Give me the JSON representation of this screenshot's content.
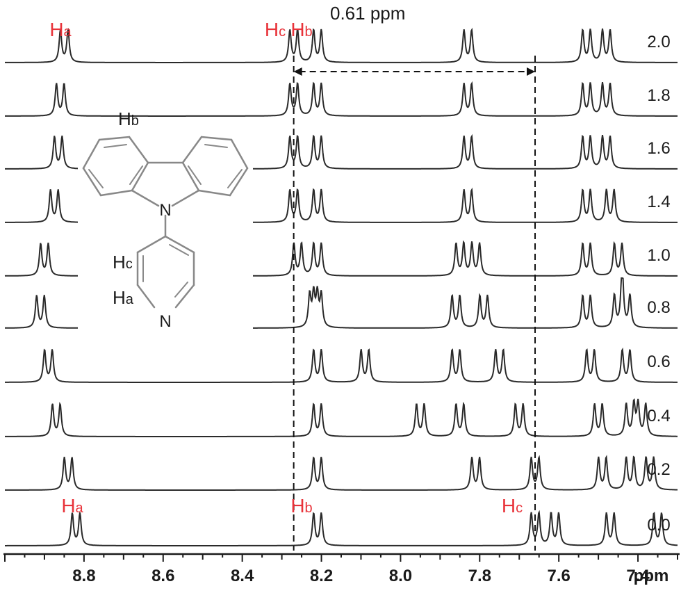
{
  "chart_data": {
    "type": "line",
    "title": "",
    "xlabel": "ppm",
    "ylabel": "",
    "xlim": [
      9.0,
      7.3
    ],
    "x_ticks": [
      "8.8",
      "8.6",
      "8.4",
      "8.2",
      "8.0",
      "7.8",
      "7.6",
      "7.4"
    ],
    "shift_annotation": "0.61 ppm",
    "dashed_guides_ppm": [
      8.27,
      7.66
    ],
    "series": [
      {
        "name": "2.0",
        "peaks": [
          8.85,
          8.27,
          8.21,
          7.83,
          7.53,
          7.48
        ]
      },
      {
        "name": "1.8",
        "peaks": [
          8.86,
          8.27,
          8.21,
          7.83,
          7.53,
          7.48
        ]
      },
      {
        "name": "1.6",
        "peaks": [
          8.865,
          8.27,
          8.21,
          7.83,
          7.53,
          7.48
        ]
      },
      {
        "name": "1.4",
        "peaks": [
          8.875,
          8.27,
          8.21,
          7.83,
          7.53,
          7.47
        ]
      },
      {
        "name": "1.0",
        "peaks": [
          8.9,
          8.26,
          8.21,
          7.85,
          7.81,
          7.53,
          7.45
        ]
      },
      {
        "name": "0.8",
        "peaks": [
          8.91,
          8.22,
          8.21,
          7.86,
          7.79,
          7.53,
          7.45,
          7.43
        ]
      },
      {
        "name": "0.6",
        "peaks": [
          8.89,
          8.21,
          8.09,
          7.86,
          7.75,
          7.52,
          7.43
        ]
      },
      {
        "name": "0.4",
        "peaks": [
          8.87,
          8.21,
          7.95,
          7.85,
          7.7,
          7.5,
          7.42,
          7.39
        ]
      },
      {
        "name": "0.2",
        "peaks": [
          8.84,
          8.21,
          7.81,
          7.66,
          7.49,
          7.42,
          7.37
        ]
      },
      {
        "name": "0.0",
        "peaks": [
          8.82,
          8.21,
          7.66,
          7.61,
          7.47,
          7.35
        ]
      }
    ],
    "peak_labels_top": [
      {
        "text": "Ha",
        "main": "H",
        "sub": "a",
        "ppm": 8.85
      },
      {
        "text": "Hc",
        "main": "H",
        "sub": "c",
        "ppm": 8.27
      },
      {
        "text": "Hb",
        "main": "H",
        "sub": "b",
        "ppm": 8.21
      }
    ],
    "peak_labels_bottom": [
      {
        "text": "Ha",
        "main": "H",
        "sub": "a",
        "ppm": 8.82
      },
      {
        "text": "Hb",
        "main": "H",
        "sub": "b",
        "ppm": 8.21
      },
      {
        "text": "Hc",
        "main": "H",
        "sub": "c",
        "ppm": 7.66
      }
    ],
    "structure_labels": {
      "hb": {
        "main": "H",
        "sub": "b"
      },
      "hc": {
        "main": "H",
        "sub": "c"
      },
      "ha": {
        "main": "H",
        "sub": "a"
      },
      "n_carbazole": "N",
      "n_pyridine": "N"
    },
    "colors": {
      "proton_label": "#e8333a",
      "trace": "#2a2a2a",
      "structure": "#888888"
    }
  }
}
